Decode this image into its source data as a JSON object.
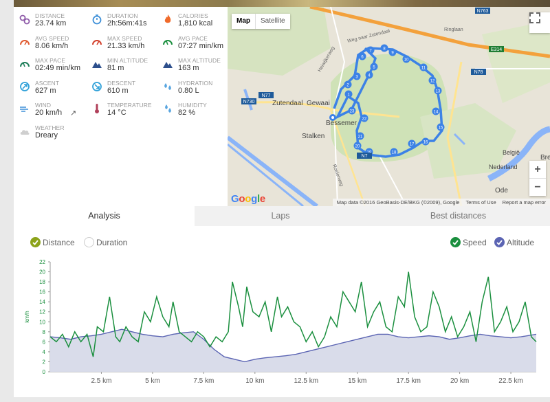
{
  "stats": [
    {
      "label": "Distance",
      "value": "23.74 km",
      "icon": "distance-icon",
      "color": "#8e5aa8"
    },
    {
      "label": "Duration",
      "value": "2h:56m:41s",
      "icon": "stopwatch-icon",
      "color": "#3d8fd8"
    },
    {
      "label": "Calories",
      "value": "1,810 kcal",
      "icon": "flame-icon",
      "color": "#f06a2a"
    },
    {
      "label": "Avg speed",
      "value": "8.06 km/h",
      "icon": "speedometer-icon",
      "color": "#e05a30"
    },
    {
      "label": "Max speed",
      "value": "21.33 km/h",
      "icon": "speedometer-icon",
      "color": "#d2402c"
    },
    {
      "label": "Avg pace",
      "value": "07:27 min/km",
      "icon": "gauge-icon",
      "color": "#1a8f3e"
    },
    {
      "label": "Max pace",
      "value": "02:49 min/km",
      "icon": "gauge-icon",
      "color": "#1f7f5a"
    },
    {
      "label": "Min altitude",
      "value": "81 m",
      "icon": "mountain-icon",
      "color": "#2d4f8c"
    },
    {
      "label": "Max altitude",
      "value": "163 m",
      "icon": "mountain-icon",
      "color": "#2d4f8c"
    },
    {
      "label": "Ascent",
      "value": "627 m",
      "icon": "ascent-icon",
      "color": "#2fa0d8"
    },
    {
      "label": "Descent",
      "value": "610 m",
      "icon": "descent-icon",
      "color": "#2fa0d8"
    },
    {
      "label": "Hydration",
      "value": "0.80 L",
      "icon": "water-drops-icon",
      "color": "#5aa6e0"
    },
    {
      "label": "Wind",
      "value": "20 km/h",
      "icon": "wind-icon",
      "color": "#3d8fd8"
    },
    {
      "label": "Temperature",
      "value": "14 °C",
      "icon": "thermometer-icon",
      "color": "#b0405a"
    },
    {
      "label": "Humidity",
      "value": "82 %",
      "icon": "humidity-icon",
      "color": "#5aa6e0"
    },
    {
      "label": "Weather",
      "value": "Dreary",
      "icon": "cloud-icon",
      "color": "#cfcfcf"
    }
  ],
  "map": {
    "type_map": "Map",
    "type_satellite": "Satellite",
    "zoom_in": "+",
    "zoom_out": "−",
    "logo": "Google",
    "attribution": [
      "Map data ©2016 GeoBasis-DE/BKG (©2009), Google",
      "Terms of Use",
      "Report a map error"
    ],
    "labels": [
      {
        "text": "Zutendaal",
        "cls": "town"
      },
      {
        "text": "Gewaai",
        "cls": "town"
      },
      {
        "text": "Bessemer",
        "cls": "town"
      },
      {
        "text": "Stalken",
        "cls": "town"
      },
      {
        "text": "Weg naar Zutendaal",
        "cls": "street"
      },
      {
        "text": "Heiwijkerweg",
        "cls": "street"
      },
      {
        "text": "Roelerweg",
        "cls": "street"
      },
      {
        "text": "Ringlaan",
        "cls": "street"
      },
      {
        "text": "België",
        "cls": "country"
      },
      {
        "text": "Nederland",
        "cls": "country"
      },
      {
        "text": "Bre",
        "cls": "town"
      },
      {
        "text": "Ode",
        "cls": "town"
      }
    ],
    "road_shields": [
      "N730",
      "N77",
      "N78",
      "E314",
      "N763",
      "N7"
    ],
    "waypoints": [
      "1",
      "2",
      "3",
      "4",
      "5",
      "6",
      "7",
      "8",
      "9",
      "10",
      "11",
      "12",
      "13",
      "14",
      "15",
      "16",
      "17",
      "18",
      "19",
      "20",
      "21",
      "22",
      "23"
    ]
  },
  "tabs": {
    "analysis": "Analysis",
    "laps": "Laps",
    "best": "Best distances"
  },
  "toggles": {
    "distance": "Distance",
    "duration": "Duration",
    "speed": "Speed",
    "altitude": "Altitude"
  },
  "colors": {
    "speed": "#1a8f3e",
    "altitude": "#5b64b3",
    "altitude_fill": "#d9dcea",
    "route": "#3c82e6",
    "olive": "#8ca31a"
  },
  "chart_data": {
    "type": "line",
    "ylabel": "km/h",
    "ylim": [
      0,
      22
    ],
    "yticks": [
      0,
      2,
      4,
      6,
      8,
      10,
      12,
      14,
      16,
      18,
      20,
      22
    ],
    "xlim": [
      0,
      23.74
    ],
    "xticks": [
      2.5,
      5,
      7.5,
      10,
      12.5,
      15,
      17.5,
      20,
      22.5
    ],
    "xtick_labels": [
      "2.5 km",
      "5 km",
      "7.5 km",
      "10 km",
      "12.5 km",
      "15 km",
      "17.5 km",
      "20 km",
      "22.5 km"
    ],
    "series": [
      {
        "name": "Speed",
        "x": [
          0,
          0.3,
          0.6,
          0.9,
          1.2,
          1.5,
          1.8,
          2.1,
          2.3,
          2.6,
          2.9,
          3.2,
          3.4,
          3.7,
          4.0,
          4.3,
          4.6,
          4.9,
          5.2,
          5.5,
          5.8,
          6.0,
          6.3,
          6.6,
          6.9,
          7.2,
          7.5,
          7.8,
          8.1,
          8.4,
          8.7,
          8.9,
          9.2,
          9.4,
          9.6,
          9.9,
          10.2,
          10.5,
          10.8,
          11.1,
          11.3,
          11.6,
          11.9,
          12.2,
          12.5,
          12.8,
          13.1,
          13.4,
          13.7,
          14.0,
          14.3,
          14.6,
          14.9,
          15.2,
          15.5,
          15.8,
          16.1,
          16.4,
          16.7,
          17.0,
          17.3,
          17.5,
          17.8,
          18.1,
          18.4,
          18.7,
          19.0,
          19.3,
          19.6,
          19.9,
          20.2,
          20.5,
          20.8,
          21.1,
          21.4,
          21.7,
          22.0,
          22.3,
          22.6,
          22.9,
          23.2,
          23.5,
          23.74
        ],
        "values": [
          7,
          6,
          7.5,
          5,
          8,
          6,
          7.5,
          3,
          9,
          8,
          15,
          7,
          6,
          9,
          7,
          6,
          12,
          10,
          15,
          11,
          9,
          14,
          8,
          7,
          6,
          8,
          7,
          5,
          7,
          6,
          8,
          18,
          13,
          9,
          17,
          12,
          11,
          14,
          8,
          15,
          11,
          13,
          10,
          9,
          6,
          8,
          5,
          7,
          11,
          9,
          16,
          14,
          12,
          18,
          9,
          12,
          14,
          9,
          8,
          15,
          13,
          20,
          11,
          8,
          9,
          16,
          13,
          8,
          11,
          7,
          9,
          12,
          6,
          14,
          19,
          8,
          10,
          13,
          8,
          10,
          14,
          7,
          6
        ]
      },
      {
        "name": "Altitude",
        "x": [
          0,
          0.5,
          1,
          1.5,
          2,
          2.5,
          3,
          3.5,
          4,
          4.5,
          5,
          5.5,
          6,
          6.5,
          7,
          7.5,
          8,
          8.5,
          9,
          9.5,
          10,
          10.5,
          11,
          11.5,
          12,
          12.5,
          13,
          13.5,
          14,
          14.5,
          15,
          15.5,
          16,
          16.5,
          17,
          17.5,
          18,
          18.5,
          19,
          19.5,
          20,
          20.5,
          21,
          21.5,
          22,
          22.5,
          23,
          23.74
        ],
        "values": [
          7,
          6.8,
          6.5,
          7,
          7.2,
          7.5,
          8,
          8.5,
          8,
          7.5,
          7.2,
          7,
          7.5,
          7.8,
          8,
          6.5,
          4.5,
          3,
          2.5,
          2,
          2.5,
          2.8,
          3,
          3.2,
          3.5,
          4,
          4.5,
          5,
          5.5,
          6,
          6.5,
          7,
          7.5,
          7.5,
          7,
          6.8,
          7,
          7.2,
          7,
          6.5,
          6.8,
          7.2,
          7.5,
          7.2,
          7,
          6.8,
          7,
          7.5
        ]
      }
    ]
  }
}
